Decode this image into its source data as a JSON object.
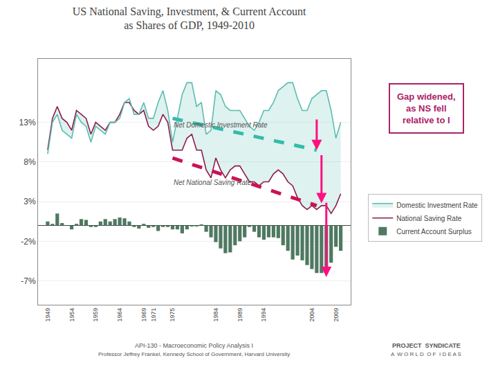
{
  "chart_data": {
    "type": "line",
    "title": "US National Saving, Investment, & Current Account\nas Shares of GDP, 1949-2010",
    "x": [
      1949,
      1950,
      1951,
      1952,
      1953,
      1954,
      1955,
      1956,
      1957,
      1958,
      1959,
      1960,
      1961,
      1962,
      1963,
      1964,
      1965,
      1966,
      1967,
      1968,
      1969,
      1970,
      1971,
      1972,
      1973,
      1974,
      1975,
      1976,
      1977,
      1978,
      1979,
      1980,
      1981,
      1982,
      1983,
      1984,
      1985,
      1986,
      1987,
      1988,
      1989,
      1990,
      1991,
      1992,
      1993,
      1994,
      1995,
      1996,
      1997,
      1998,
      1999,
      2000,
      2001,
      2002,
      2003,
      2004,
      2005,
      2006,
      2007,
      2008,
      2009,
      2010
    ],
    "series": [
      {
        "name": "Current Account Surplus",
        "type": "bar",
        "color": "#3d6b50",
        "values": [
          0.5,
          0.2,
          1.5,
          0.3,
          0.0,
          -0.5,
          0.2,
          0.8,
          0.7,
          -0.2,
          -0.2,
          0.5,
          0.8,
          0.5,
          0.8,
          1.0,
          0.9,
          0.5,
          -0.2,
          -0.4,
          0.2,
          -0.3,
          -0.2,
          -0.7,
          -0.2,
          -0.2,
          -0.5,
          -0.5,
          -1.0,
          -0.5,
          -0.1,
          -0.1,
          0.1,
          -0.8,
          -1.5,
          -2.1,
          -2.9,
          -3.5,
          -3.4,
          -2.5,
          -2.0,
          -1.5,
          -0.2,
          -0.8,
          -1.5,
          -1.8,
          -1.5,
          -1.5,
          -1.6,
          -2.5,
          -3.2,
          -4.3,
          -3.8,
          -4.4,
          -5.0,
          -5.5,
          -6.0,
          -6.0,
          -5.3,
          -4.7,
          -2.7,
          -3.2
        ]
      },
      {
        "name": "National Saving Rate",
        "type": "line",
        "color": "#8B1A4A",
        "values": [
          9.5,
          13.5,
          15.0,
          13.5,
          13.0,
          12.0,
          14.5,
          14.0,
          13.5,
          11.5,
          13.0,
          12.5,
          12.0,
          13.0,
          13.0,
          14.0,
          15.5,
          15.5,
          14.5,
          14.0,
          14.5,
          12.5,
          12.0,
          12.5,
          14.0,
          13.0,
          9.5,
          9.5,
          9.5,
          11.0,
          11.5,
          9.5,
          9.5,
          7.0,
          6.0,
          8.5,
          7.0,
          6.0,
          7.0,
          7.5,
          7.5,
          6.5,
          5.5,
          5.5,
          5.0,
          5.5,
          5.5,
          6.5,
          7.0,
          6.5,
          5.5,
          5.0,
          3.5,
          2.5,
          2.0,
          2.5,
          2.0,
          2.5,
          2.5,
          1.5,
          2.5,
          4.0
        ]
      },
      {
        "name": "Domestic Investment Rate",
        "type": "line",
        "color": "#5BBCB0",
        "values": [
          9.0,
          13.0,
          14.0,
          12.0,
          11.5,
          11.0,
          14.0,
          13.0,
          12.5,
          10.5,
          12.5,
          12.0,
          11.5,
          13.0,
          13.0,
          13.5,
          15.5,
          16.0,
          14.0,
          14.0,
          15.5,
          13.5,
          13.5,
          15.5,
          17.0,
          14.5,
          10.5,
          13.5,
          16.5,
          18.0,
          18.0,
          15.0,
          15.5,
          11.5,
          12.0,
          17.0,
          16.5,
          15.0,
          14.5,
          14.5,
          14.5,
          13.5,
          12.5,
          12.0,
          13.0,
          14.5,
          14.5,
          15.5,
          17.0,
          17.5,
          18.0,
          18.0,
          16.0,
          14.5,
          14.5,
          16.0,
          16.5,
          17.0,
          17.0,
          14.5,
          11.0,
          13.0
        ]
      },
      {
        "type": "line",
        "line_style": "dashed",
        "color": "#CC1155",
        "x": [
          1975,
          2005
        ],
        "values": [
          8.5,
          2.5
        ]
      },
      {
        "type": "line",
        "line_style": "dashed",
        "color": "#33BBAA",
        "x": [
          1975,
          2005
        ],
        "values": [
          13.5,
          9.5
        ]
      }
    ],
    "annotations": [
      {
        "text": "Net Domestic Investment Rate",
        "x": 1975,
        "y": 12.0
      },
      {
        "text": "Net National Saving Rate",
        "x": 1975,
        "y": 4.8
      },
      {
        "text": "Gap widened,\nas NS fell\nrelative to I",
        "color": "#AA2266"
      }
    ],
    "arrows": [
      {
        "x": 2005,
        "y_start": 13.5,
        "y_end": 9.5,
        "color": "#FF1080"
      },
      {
        "x": 2006,
        "y_start": 9.0,
        "y_end": 2.8,
        "color": "#FF1080"
      },
      {
        "x": 2007,
        "y_start": 3.0,
        "y_end": -6.5,
        "color": "#FF1080"
      }
    ],
    "footer": [
      "API-130 - Macroeconomic Policy Analysis I",
      "Professor Jeffrey Frankel, Kennedy School of Government, Harvard University",
      "PROJECT  SYNDICATE",
      "A  W O R L D  O F  I D E A S"
    ],
    "xlim": [
      1947,
      2012
    ],
    "xticks": [
      1949,
      1954,
      1959,
      1964,
      1969,
      1971,
      1975,
      1984,
      1989,
      1994,
      2004,
      2009
    ],
    "ylim": [
      -10,
      21
    ],
    "yticks": [
      {
        "value": -7,
        "label": "-7%"
      },
      {
        "value": -2,
        "label": "-2%"
      },
      {
        "value": 3,
        "label": "3%"
      },
      {
        "value": 8,
        "label": "8%"
      },
      {
        "value": 13,
        "label": "13%"
      }
    ],
    "grid": "y",
    "legend": "right"
  }
}
